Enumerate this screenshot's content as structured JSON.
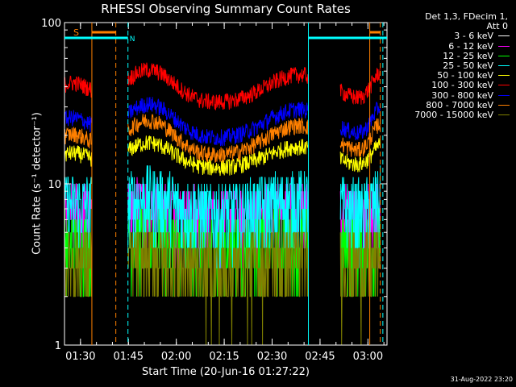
{
  "chart_data": {
    "type": "line",
    "title": "RHESSI Observing Summary Count Rates",
    "xlabel": "Start Time (20-Jun-16 01:27:22)",
    "ylabel": "Count Rate (s⁻¹ detector⁻¹)",
    "yscale": "log",
    "ylim": [
      1,
      100
    ],
    "xlim_minutes": [
      -2.37,
      98.6
    ],
    "x_ticks": [
      "01:30",
      "01:45",
      "02:00",
      "02:15",
      "02:30",
      "02:45",
      "03:00"
    ],
    "y_ticks": [
      "1",
      "10",
      "100"
    ],
    "header": [
      "Det 1,3, FDecim 1,",
      "Att 0"
    ],
    "footer": "31-Aug-2022 23:20",
    "markers": {
      "saa_label": "S",
      "night_label": "N"
    },
    "series": [
      {
        "name": "3 - 6 keV",
        "color": "#000000",
        "base": 1.6,
        "amp": 0.6
      },
      {
        "name": "6 - 12 keV",
        "color": "#ff00ff",
        "base": 6.0,
        "amp": 2.0
      },
      {
        "name": "12 - 25 keV",
        "color": "#00ff00",
        "base": 4.0,
        "amp": 1.2
      },
      {
        "name": "25 - 50 keV",
        "color": "#00ffff",
        "base": 6.5,
        "amp": 3.0
      },
      {
        "name": "50 - 100 keV",
        "color": "#ffff00",
        "base": 12,
        "amp": 10
      },
      {
        "name": "100 - 300 keV",
        "color": "#ff0000",
        "base": 30,
        "amp": 35
      },
      {
        "name": "300 - 800 keV",
        "color": "#0000ff",
        "base": 18,
        "amp": 22
      },
      {
        "name": "800 - 7000 keV",
        "color": "#ff8000",
        "base": 14,
        "amp": 18
      },
      {
        "name": "7000 - 15000 keV",
        "color": "#808000",
        "base": 3.0,
        "amp": 1.0
      }
    ]
  }
}
